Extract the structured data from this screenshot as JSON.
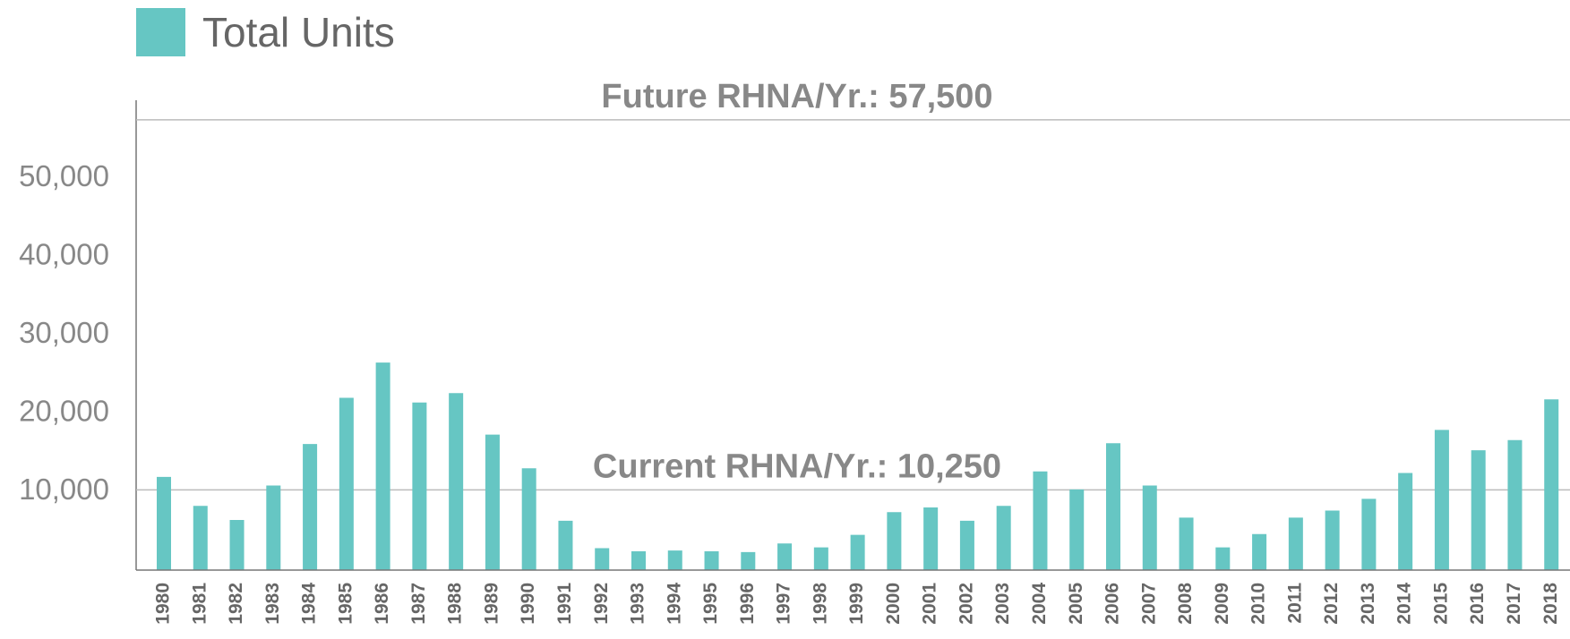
{
  "chart_data": {
    "type": "bar",
    "legend": "top-left",
    "series": [
      {
        "name": "Total Units",
        "color": "#66c6c3",
        "values": [
          11900,
          8200,
          6400,
          10800,
          16100,
          22000,
          26500,
          21400,
          22600,
          17300,
          13000,
          6300,
          2800,
          2400,
          2500,
          2400,
          2300,
          3400,
          2900,
          4500,
          7400,
          8000,
          6300,
          8200,
          12600,
          10300,
          16200,
          10800,
          6700,
          2900,
          4600,
          6700,
          7600,
          9100,
          12400,
          17900,
          15300,
          16600,
          21800
        ]
      }
    ],
    "categories": [
      "1980",
      "1981",
      "1982",
      "1983",
      "1984",
      "1985",
      "1986",
      "1987",
      "1988",
      "1989",
      "1990",
      "1991",
      "1992",
      "1993",
      "1994",
      "1995",
      "1996",
      "1997",
      "1998",
      "1999",
      "2000",
      "2001",
      "2002",
      "2003",
      "2004",
      "2005",
      "2006",
      "2007",
      "2008",
      "2009",
      "2010",
      "2011",
      "2012",
      "2013",
      "2014",
      "2015",
      "2016",
      "2017",
      "2018"
    ],
    "ylim": [
      0,
      60000
    ],
    "yticks": [
      {
        "value": 10000,
        "label": "10,000"
      },
      {
        "value": 20000,
        "label": "20,000"
      },
      {
        "value": 30000,
        "label": "30,000"
      },
      {
        "value": 40000,
        "label": "40,000"
      },
      {
        "value": 50000,
        "label": "50,000"
      }
    ],
    "grid": false,
    "reference_lines": [
      {
        "label": "Future RHNA/Yr.: 57,500",
        "value": 57500
      },
      {
        "label": "Current RHNA/Yr.: 10,250",
        "value": 10250
      }
    ]
  }
}
